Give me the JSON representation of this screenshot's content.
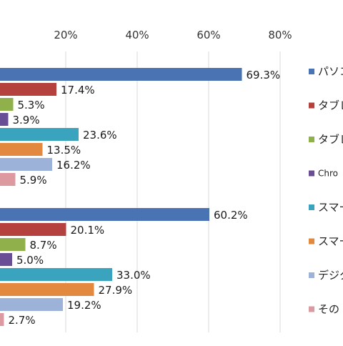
{
  "chart_data": {
    "type": "bar",
    "orientation": "horizontal",
    "xlim": [
      0,
      80
    ],
    "tick_labels": [
      "20%",
      "40%",
      "60%",
      "80%"
    ],
    "grid": true,
    "legend_position": "right",
    "groups": [
      {
        "bars": [
          {
            "series": "パソコン",
            "value": 69.3,
            "label": "69.3%"
          },
          {
            "series": "タブレット",
            "value": 17.4,
            "label": "17.4%"
          },
          {
            "series": "タブレット",
            "value": 5.3,
            "label": "5.3%"
          },
          {
            "series": "Chromebook",
            "value": 3.9,
            "label": "3.9%"
          },
          {
            "series": "スマートフォン",
            "value": 23.6,
            "label": "23.6%"
          },
          {
            "series": "スマートフォン",
            "value": 13.5,
            "label": "13.5%"
          },
          {
            "series": "デジタル",
            "value": 16.2,
            "label": "16.2%"
          },
          {
            "series": "その他",
            "value": 5.9,
            "label": "5.9%"
          }
        ]
      },
      {
        "bars": [
          {
            "series": "パソコン",
            "value": 60.2,
            "label": "60.2%"
          },
          {
            "series": "タブレット",
            "value": 20.1,
            "label": "20.1%"
          },
          {
            "series": "タブレット",
            "value": 8.7,
            "label": "8.7%"
          },
          {
            "series": "Chromebook",
            "value": 5.0,
            "label": "5.0%"
          },
          {
            "series": "スマートフォン",
            "value": 33.0,
            "label": "33.0%"
          },
          {
            "series": "スマートフォン",
            "value": 27.9,
            "label": "27.9%"
          },
          {
            "series": "デジタル",
            "value": 19.2,
            "label": "19.2%"
          },
          {
            "series": "その他",
            "value": 2.7,
            "label": "2.7%"
          }
        ]
      }
    ],
    "legend": [
      {
        "label": "パソコ",
        "color": "#4a73b3"
      },
      {
        "label": "タブレ",
        "color": "#b5413e"
      },
      {
        "label": "タブレ",
        "color": "#8fb04a"
      },
      {
        "label": "Chro",
        "color": "#6a4e95"
      },
      {
        "label": "スマー",
        "color": "#3aa3bd"
      },
      {
        "label": "スマー",
        "color": "#e3893f"
      },
      {
        "label": "デジタ",
        "color": "#9db2d8"
      },
      {
        "label": "その",
        "color": "#dc9aa0"
      }
    ],
    "series_colors": [
      "#4a73b3",
      "#b5413e",
      "#8fb04a",
      "#6a4e95",
      "#3aa3bd",
      "#e3893f",
      "#9db2d8",
      "#dc9aa0"
    ]
  }
}
